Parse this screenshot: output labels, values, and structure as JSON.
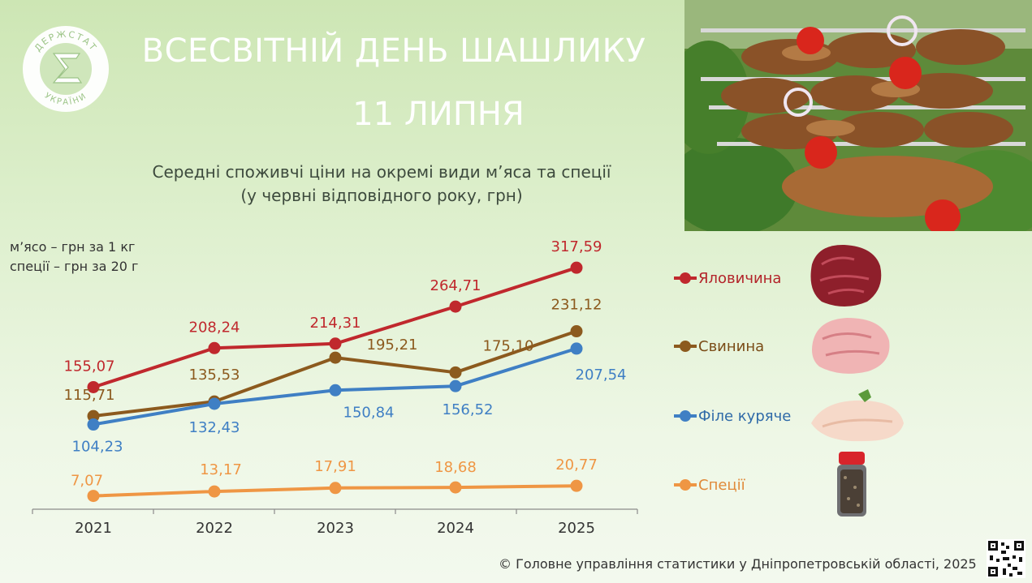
{
  "header": {
    "title": "ВСЕСВІТНІЙ ДЕНЬ ШАШЛИКУ",
    "date": "11 ЛИПНЯ",
    "subtitle_line1": "Середні споживчі ціни на окремі види м’яса та спеції",
    "subtitle_line2": "(у червні відповідного року, грн)",
    "logo_text_top": "ДЕРЖСТАТ",
    "logo_text_bottom": "УКРАЇНИ"
  },
  "unit_note": {
    "line1": "м’ясо – грн за 1 кг",
    "line2": "спеції – грн за 20 г"
  },
  "chart_data": {
    "type": "line",
    "x": [
      "2021",
      "2022",
      "2023",
      "2024",
      "2025"
    ],
    "ylim": [
      0,
      320
    ],
    "grid": false,
    "legend_position": "right",
    "series": [
      {
        "name": "Яловичина",
        "color": "#c0282d",
        "values": [
          155.07,
          208.24,
          214.31,
          264.71,
          317.59
        ],
        "labels": [
          "155,07",
          "208,24",
          "214,31",
          "264,71",
          "317,59"
        ]
      },
      {
        "name": "Свинина",
        "color": "#8c5a1e",
        "values": [
          115.71,
          135.53,
          195.21,
          175.1,
          231.12
        ],
        "labels": [
          "115,71",
          "135,53",
          "195,21",
          "175,10",
          "231,12"
        ]
      },
      {
        "name": "Філе куряче",
        "color": "#3f7fc4",
        "values": [
          104.23,
          132.43,
          150.84,
          156.52,
          207.54
        ],
        "labels": [
          "104,23",
          "132,43",
          "150,84",
          "156,52",
          "207,54"
        ]
      },
      {
        "name": "Спеції",
        "color": "#ef9644",
        "values": [
          7.07,
          13.17,
          17.91,
          18.68,
          20.77
        ],
        "labels": [
          "7,07",
          "13,17",
          "17,91",
          "18,68",
          "20,77"
        ]
      }
    ]
  },
  "footer": {
    "source": "© Головне управління статистики  у Дніпропетровській області, 2025"
  }
}
